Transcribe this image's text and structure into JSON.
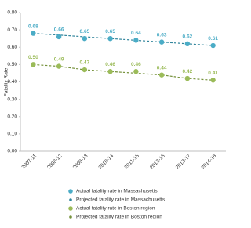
{
  "chart_data": {
    "type": "line",
    "y_label": "Fatality Rate",
    "categories": [
      "2007-11",
      "2008-12",
      "2009-13",
      "2010-14",
      "2011-15",
      "2012-16",
      "2013-17",
      "2014-18"
    ],
    "series": [
      {
        "name": "Actual fatality rate in Massachusetts",
        "color": "#4bacc6",
        "mark": "dot",
        "values": [
          0.68,
          0.66,
          0.65,
          0.65,
          0.64,
          0.63,
          0.62,
          0.61
        ],
        "value_labels": [
          "0.68",
          "0.66",
          "0.65",
          "0.65",
          "0.64",
          "0.63",
          "0.62",
          "0.61"
        ]
      },
      {
        "name": "Projected fatality rate in Massachusetts",
        "color": "#31859c",
        "mark": "dashed-line",
        "values": [
          0.68,
          0.67,
          0.66,
          0.65,
          0.64,
          0.63,
          0.62,
          0.61
        ]
      },
      {
        "name": "Actual fatality rate in Boston region",
        "color": "#9bbb59",
        "mark": "dot",
        "values": [
          0.5,
          0.49,
          0.47,
          0.46,
          0.46,
          0.44,
          0.42,
          0.41
        ],
        "value_labels": [
          "0.50",
          "0.49",
          "0.47",
          "0.46",
          "0.46",
          "0.44",
          "0.42",
          "0.41"
        ]
      },
      {
        "name": "Projected fatality rate in Boston region",
        "color": "#76923c",
        "mark": "dashed-line",
        "values": [
          0.5,
          0.49,
          0.47,
          0.46,
          0.45,
          0.44,
          0.42,
          0.41
        ]
      }
    ],
    "ylim": [
      0,
      0.8
    ],
    "yticks": [
      {
        "value": 0,
        "label": "0.00"
      },
      {
        "value": 0.1,
        "label": "0.10"
      },
      {
        "value": 0.2,
        "label": "0.20"
      },
      {
        "value": 0.3,
        "label": "0.30"
      },
      {
        "value": 0.4,
        "label": "0.40"
      },
      {
        "value": 0.5,
        "label": "0.50"
      },
      {
        "value": 0.6,
        "label": "0.60"
      },
      {
        "value": 0.7,
        "label": "0.70"
      },
      {
        "value": 0.8,
        "label": "0.80"
      }
    ],
    "grid": false,
    "legend": "bottom"
  }
}
